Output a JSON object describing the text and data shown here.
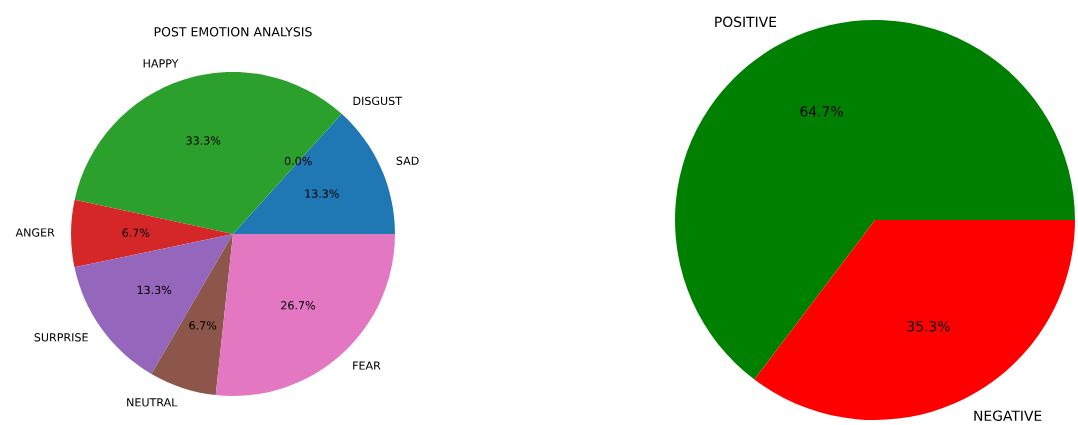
{
  "chart_data": [
    {
      "type": "pie",
      "title": "POST EMOTION ANALYSIS",
      "categories": [
        "SAD",
        "DISGUST",
        "HAPPY",
        "ANGER",
        "SURPRISE",
        "NEUTRAL",
        "FEAR"
      ],
      "values": [
        13.3,
        0.0,
        33.3,
        6.7,
        13.3,
        6.7,
        26.7
      ],
      "colors": [
        "#1f77b4",
        "#ff7f0e",
        "#2ca02c",
        "#d62728",
        "#9467bd",
        "#8c564b",
        "#e377c2"
      ],
      "value_labels": [
        "13.3%",
        "0.0%",
        "33.3%",
        "6.7%",
        "13.3%",
        "6.7%",
        "26.7%"
      ]
    },
    {
      "type": "pie",
      "categories": [
        "POSITIVE",
        "NEGATIVE"
      ],
      "values": [
        64.7,
        35.3
      ],
      "colors": [
        "#008000",
        "#ff0000"
      ],
      "value_labels": [
        "64.7%",
        "35.3%"
      ]
    }
  ]
}
